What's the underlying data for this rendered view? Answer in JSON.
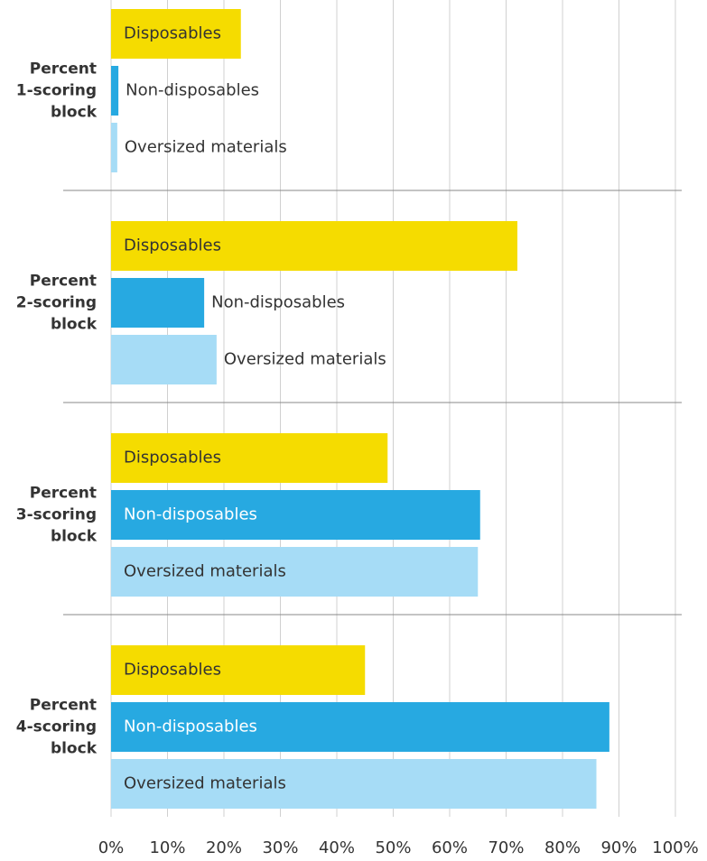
{
  "chart_data": {
    "type": "hbar",
    "categories": [
      "Percent 1-scoring block",
      "Percent 2-scoring block",
      "Percent 3-scoring block",
      "Percent 4-scoring block"
    ],
    "series": [
      {
        "name": "Disposables",
        "color": "#f5dc00",
        "values": [
          23,
          72,
          49,
          45
        ]
      },
      {
        "name": "Non-disposables",
        "color": "#27a9e1",
        "values": [
          1.3,
          16.5,
          65.4,
          88.3
        ]
      },
      {
        "name": "Oversized materials",
        "color": "#a6dcf6",
        "values": [
          1.1,
          18.7,
          65,
          86
        ]
      }
    ],
    "xlim": [
      0,
      100
    ],
    "xticks": [
      {
        "value": 0,
        "label": "0%"
      },
      {
        "value": 10,
        "label": "10%"
      },
      {
        "value": 20,
        "label": "20%"
      },
      {
        "value": 30,
        "label": "30%"
      },
      {
        "value": 40,
        "label": "40%"
      },
      {
        "value": 50,
        "label": "50%"
      },
      {
        "value": 60,
        "label": "60%"
      },
      {
        "value": 70,
        "label": "70%"
      },
      {
        "value": 80,
        "label": "80%"
      },
      {
        "value": 90,
        "label": "90%"
      },
      {
        "value": 100,
        "label": "100%"
      }
    ],
    "grid": true
  }
}
